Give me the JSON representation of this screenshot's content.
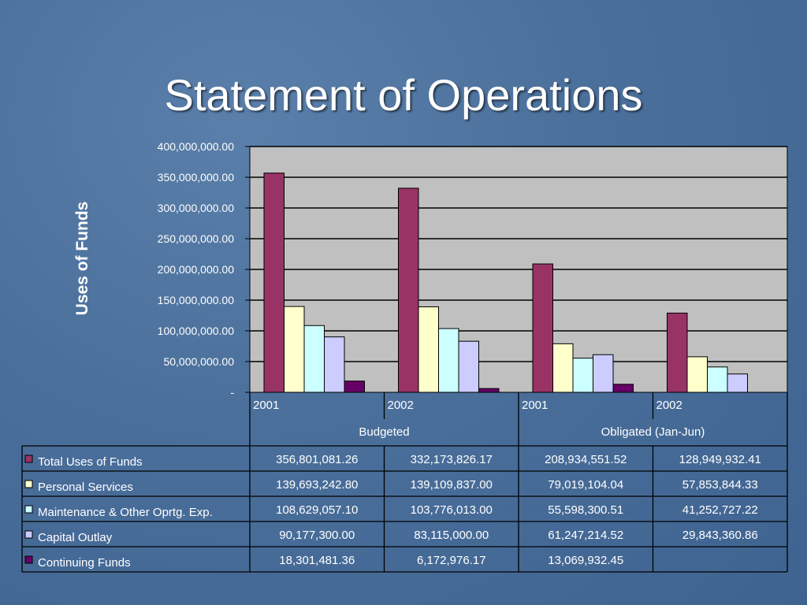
{
  "slide": {
    "title": "Statement of Operations"
  },
  "chart_data": {
    "type": "bar",
    "ylabel": "Uses of Funds",
    "ylim": [
      0,
      400000000
    ],
    "y_ticks": [
      "-",
      "50,000,000.00",
      "100,000,000.00",
      "150,000,000.00",
      "200,000,000.00",
      "250,000,000.00",
      "300,000,000.00",
      "350,000,000.00",
      "400,000,000.00"
    ],
    "categories": [
      "2001",
      "2002",
      "2001",
      "2002"
    ],
    "category_groups": [
      {
        "label": "Budgeted",
        "span": 2
      },
      {
        "label": "Obligated (Jan-Jun)",
        "span": 2
      }
    ],
    "legend_placement": "data table below chart",
    "grid": true,
    "series": [
      {
        "name": "Total Uses of Funds",
        "color": "#993366",
        "values": [
          356801081.26,
          332173826.17,
          208934551.52,
          128949932.41
        ],
        "labels": [
          "356,801,081.26",
          "332,173,826.17",
          "208,934,551.52",
          "128,949,932.41"
        ]
      },
      {
        "name": "Personal Services",
        "color": "#FFFFCC",
        "values": [
          139693242.8,
          139109837.0,
          79019104.04,
          57853844.33
        ],
        "labels": [
          "139,693,242.80",
          "139,109,837.00",
          "79,019,104.04",
          "57,853,844.33"
        ]
      },
      {
        "name": "Maintenance & Other Oprtg. Exp.",
        "color": "#CCFFFF",
        "values": [
          108629057.1,
          103776013.0,
          55598300.51,
          41252727.22
        ],
        "labels": [
          "108,629,057.10",
          "103,776,013.00",
          "55,598,300.51",
          "41,252,727.22"
        ]
      },
      {
        "name": "Capital Outlay",
        "color": "#CCCCFF",
        "values": [
          90177300.0,
          83115000.0,
          61247214.52,
          29843360.86
        ],
        "labels": [
          "90,177,300.00",
          "83,115,000.00",
          "61,247,214.52",
          "29,843,360.86"
        ]
      },
      {
        "name": "Continuing Funds",
        "color": "#660066",
        "values": [
          18301481.36,
          6172976.17,
          13069932.45,
          null
        ],
        "labels": [
          "18,301,481.36",
          "6,172,976.17",
          "13,069,932.45",
          ""
        ]
      }
    ],
    "plot_background": "#C0C0C0"
  }
}
